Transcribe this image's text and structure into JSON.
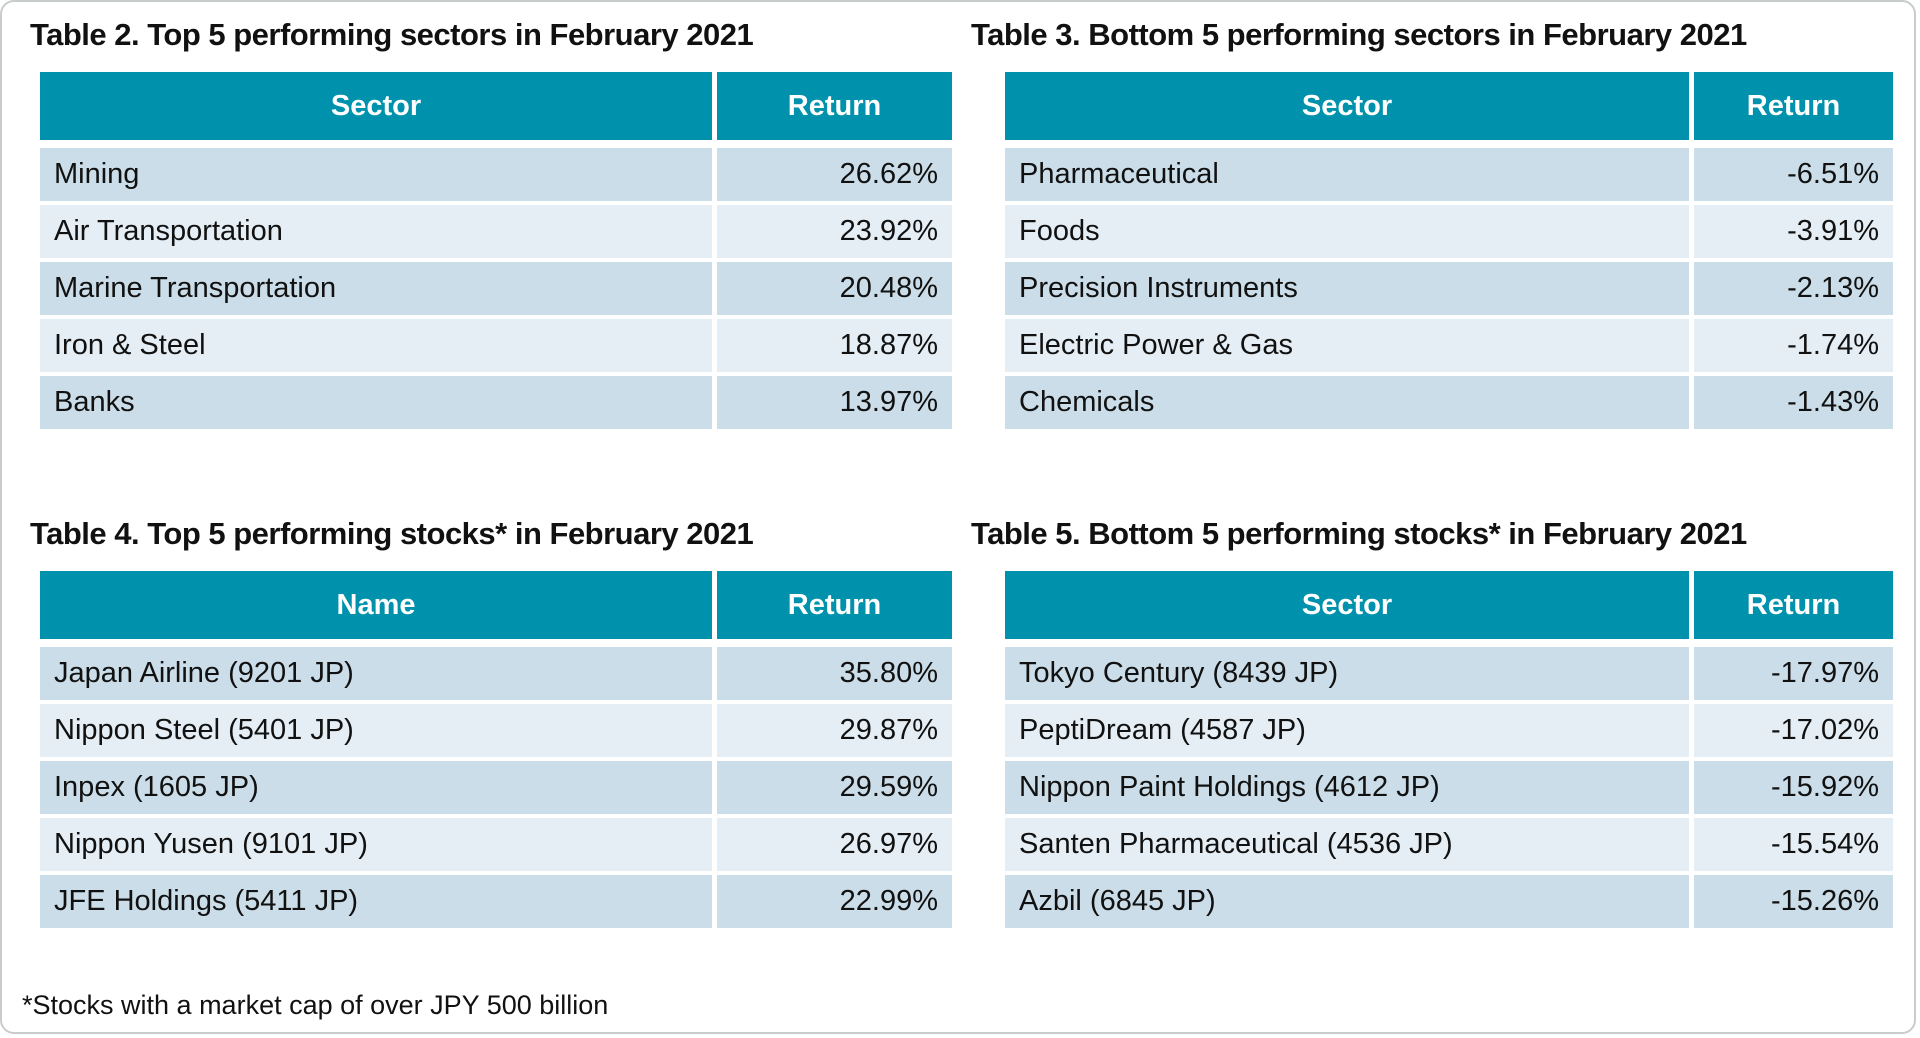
{
  "colors": {
    "header_bg": "#0092ad",
    "header_text": "#ffffff",
    "row_odd_bg": "#cbdde8",
    "row_even_bg": "#e4eef4",
    "card_border": "#c9cccd",
    "text": "#111111"
  },
  "tables": [
    {
      "title": "Table 2. Top 5 performing sectors in February 2021",
      "columns": [
        "Sector",
        "Return"
      ],
      "rows": [
        [
          "Mining",
          "26.62%"
        ],
        [
          "Air Transportation",
          "23.92%"
        ],
        [
          "Marine Transportation",
          "20.48%"
        ],
        [
          "Iron & Steel",
          "18.87%"
        ],
        [
          "Banks",
          "13.97%"
        ]
      ]
    },
    {
      "title": "Table 3. Bottom 5 performing sectors in February 2021",
      "columns": [
        "Sector",
        "Return"
      ],
      "rows": [
        [
          "Pharmaceutical",
          "-6.51%"
        ],
        [
          "Foods",
          "-3.91%"
        ],
        [
          "Precision Instruments",
          "-2.13%"
        ],
        [
          "Electric Power & Gas",
          "-1.74%"
        ],
        [
          "Chemicals",
          "-1.43%"
        ]
      ]
    },
    {
      "title": "Table 4. Top 5 performing stocks* in February 2021",
      "columns": [
        "Name",
        "Return"
      ],
      "rows": [
        [
          "Japan Airline (9201 JP)",
          "35.80%"
        ],
        [
          "Nippon Steel (5401 JP)",
          "29.87%"
        ],
        [
          "Inpex (1605 JP)",
          "29.59%"
        ],
        [
          "Nippon Yusen (9101 JP)",
          "26.97%"
        ],
        [
          "JFE Holdings (5411 JP)",
          "22.99%"
        ]
      ]
    },
    {
      "title": "Table 5. Bottom 5 performing stocks* in February 2021",
      "columns": [
        "Sector",
        "Return"
      ],
      "rows": [
        [
          "Tokyo Century (8439 JP)",
          "-17.97%"
        ],
        [
          "PeptiDream (4587 JP)",
          "-17.02%"
        ],
        [
          "Nippon Paint Holdings (4612 JP)",
          "-15.92%"
        ],
        [
          "Santen Pharmaceutical (4536 JP)",
          "-15.54%"
        ],
        [
          "Azbil (6845 JP)",
          "-15.26%"
        ]
      ]
    }
  ],
  "footnote": "*Stocks with a market cap of over JPY 500 billion"
}
